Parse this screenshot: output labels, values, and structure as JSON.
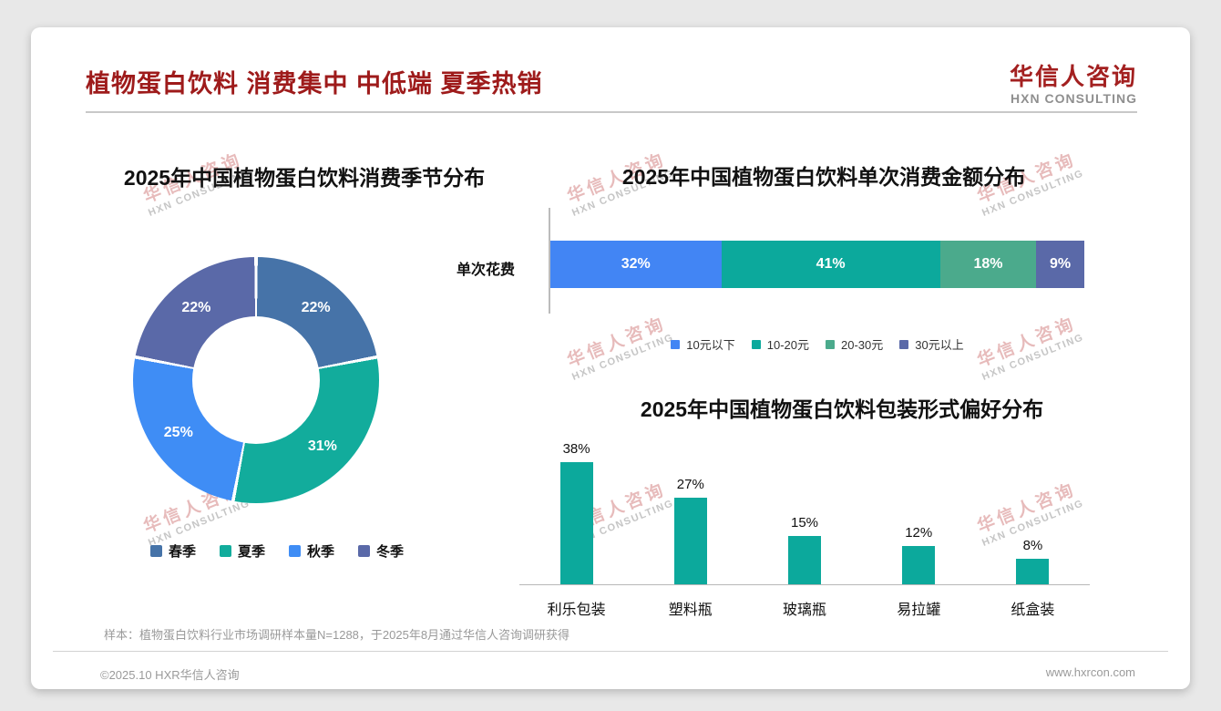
{
  "header": {
    "title": "植物蛋白饮料 消费集中 中低端 夏季热销",
    "logo_name": "华信人咨询",
    "logo_sub": "HXN CONSULTING"
  },
  "watermark": {
    "line1": "华信人咨询",
    "line2": "HXN CONSULTING"
  },
  "footer": {
    "footnote": "样本：植物蛋白饮料行业市场调研样本量N=1288，于2025年8月通过华信人咨询调研获得",
    "copyright": "©2025.10 HXR华信人咨询",
    "website": "www.hxrcon.com"
  },
  "colors": {
    "title_red": "#9E1B1B",
    "teal": "#0CA99C",
    "divider_gray": "#c8c8c8"
  },
  "chart_data": [
    {
      "type": "pie",
      "subtype": "donut",
      "title": "2025年中国植物蛋白饮料消费季节分布",
      "legend_position": "bottom",
      "segments": [
        {
          "label": "春季",
          "value": 22,
          "color": "#4673A8"
        },
        {
          "label": "夏季",
          "value": 31,
          "color": "#12AC9C"
        },
        {
          "label": "秋季",
          "value": 25,
          "color": "#3F8DF5"
        },
        {
          "label": "冬季",
          "value": 22,
          "color": "#5A69A8"
        }
      ],
      "value_suffix": "%"
    },
    {
      "type": "bar",
      "subtype": "horizontal-stacked",
      "title": "2025年中国植物蛋白饮料单次消费金额分布",
      "row_label": "单次花费",
      "legend_position": "bottom",
      "segments": [
        {
          "label": "10元以下",
          "value": 32,
          "color": "#4285F4"
        },
        {
          "label": "10-20元",
          "value": 41,
          "color": "#0CA99C"
        },
        {
          "label": "20-30元",
          "value": 18,
          "color": "#4BAA8C"
        },
        {
          "label": "30元以上",
          "value": 9,
          "color": "#5A69A8"
        }
      ],
      "value_suffix": "%"
    },
    {
      "type": "bar",
      "subtype": "vertical",
      "title": "2025年中国植物蛋白饮料包装形式偏好分布",
      "categories": [
        "利乐包装",
        "塑料瓶",
        "玻璃瓶",
        "易拉罐",
        "纸盒装"
      ],
      "values": [
        38,
        27,
        15,
        12,
        8
      ],
      "value_suffix": "%",
      "bar_color": "#0CA99C",
      "ylim": [
        0,
        40
      ],
      "grid": false
    }
  ]
}
